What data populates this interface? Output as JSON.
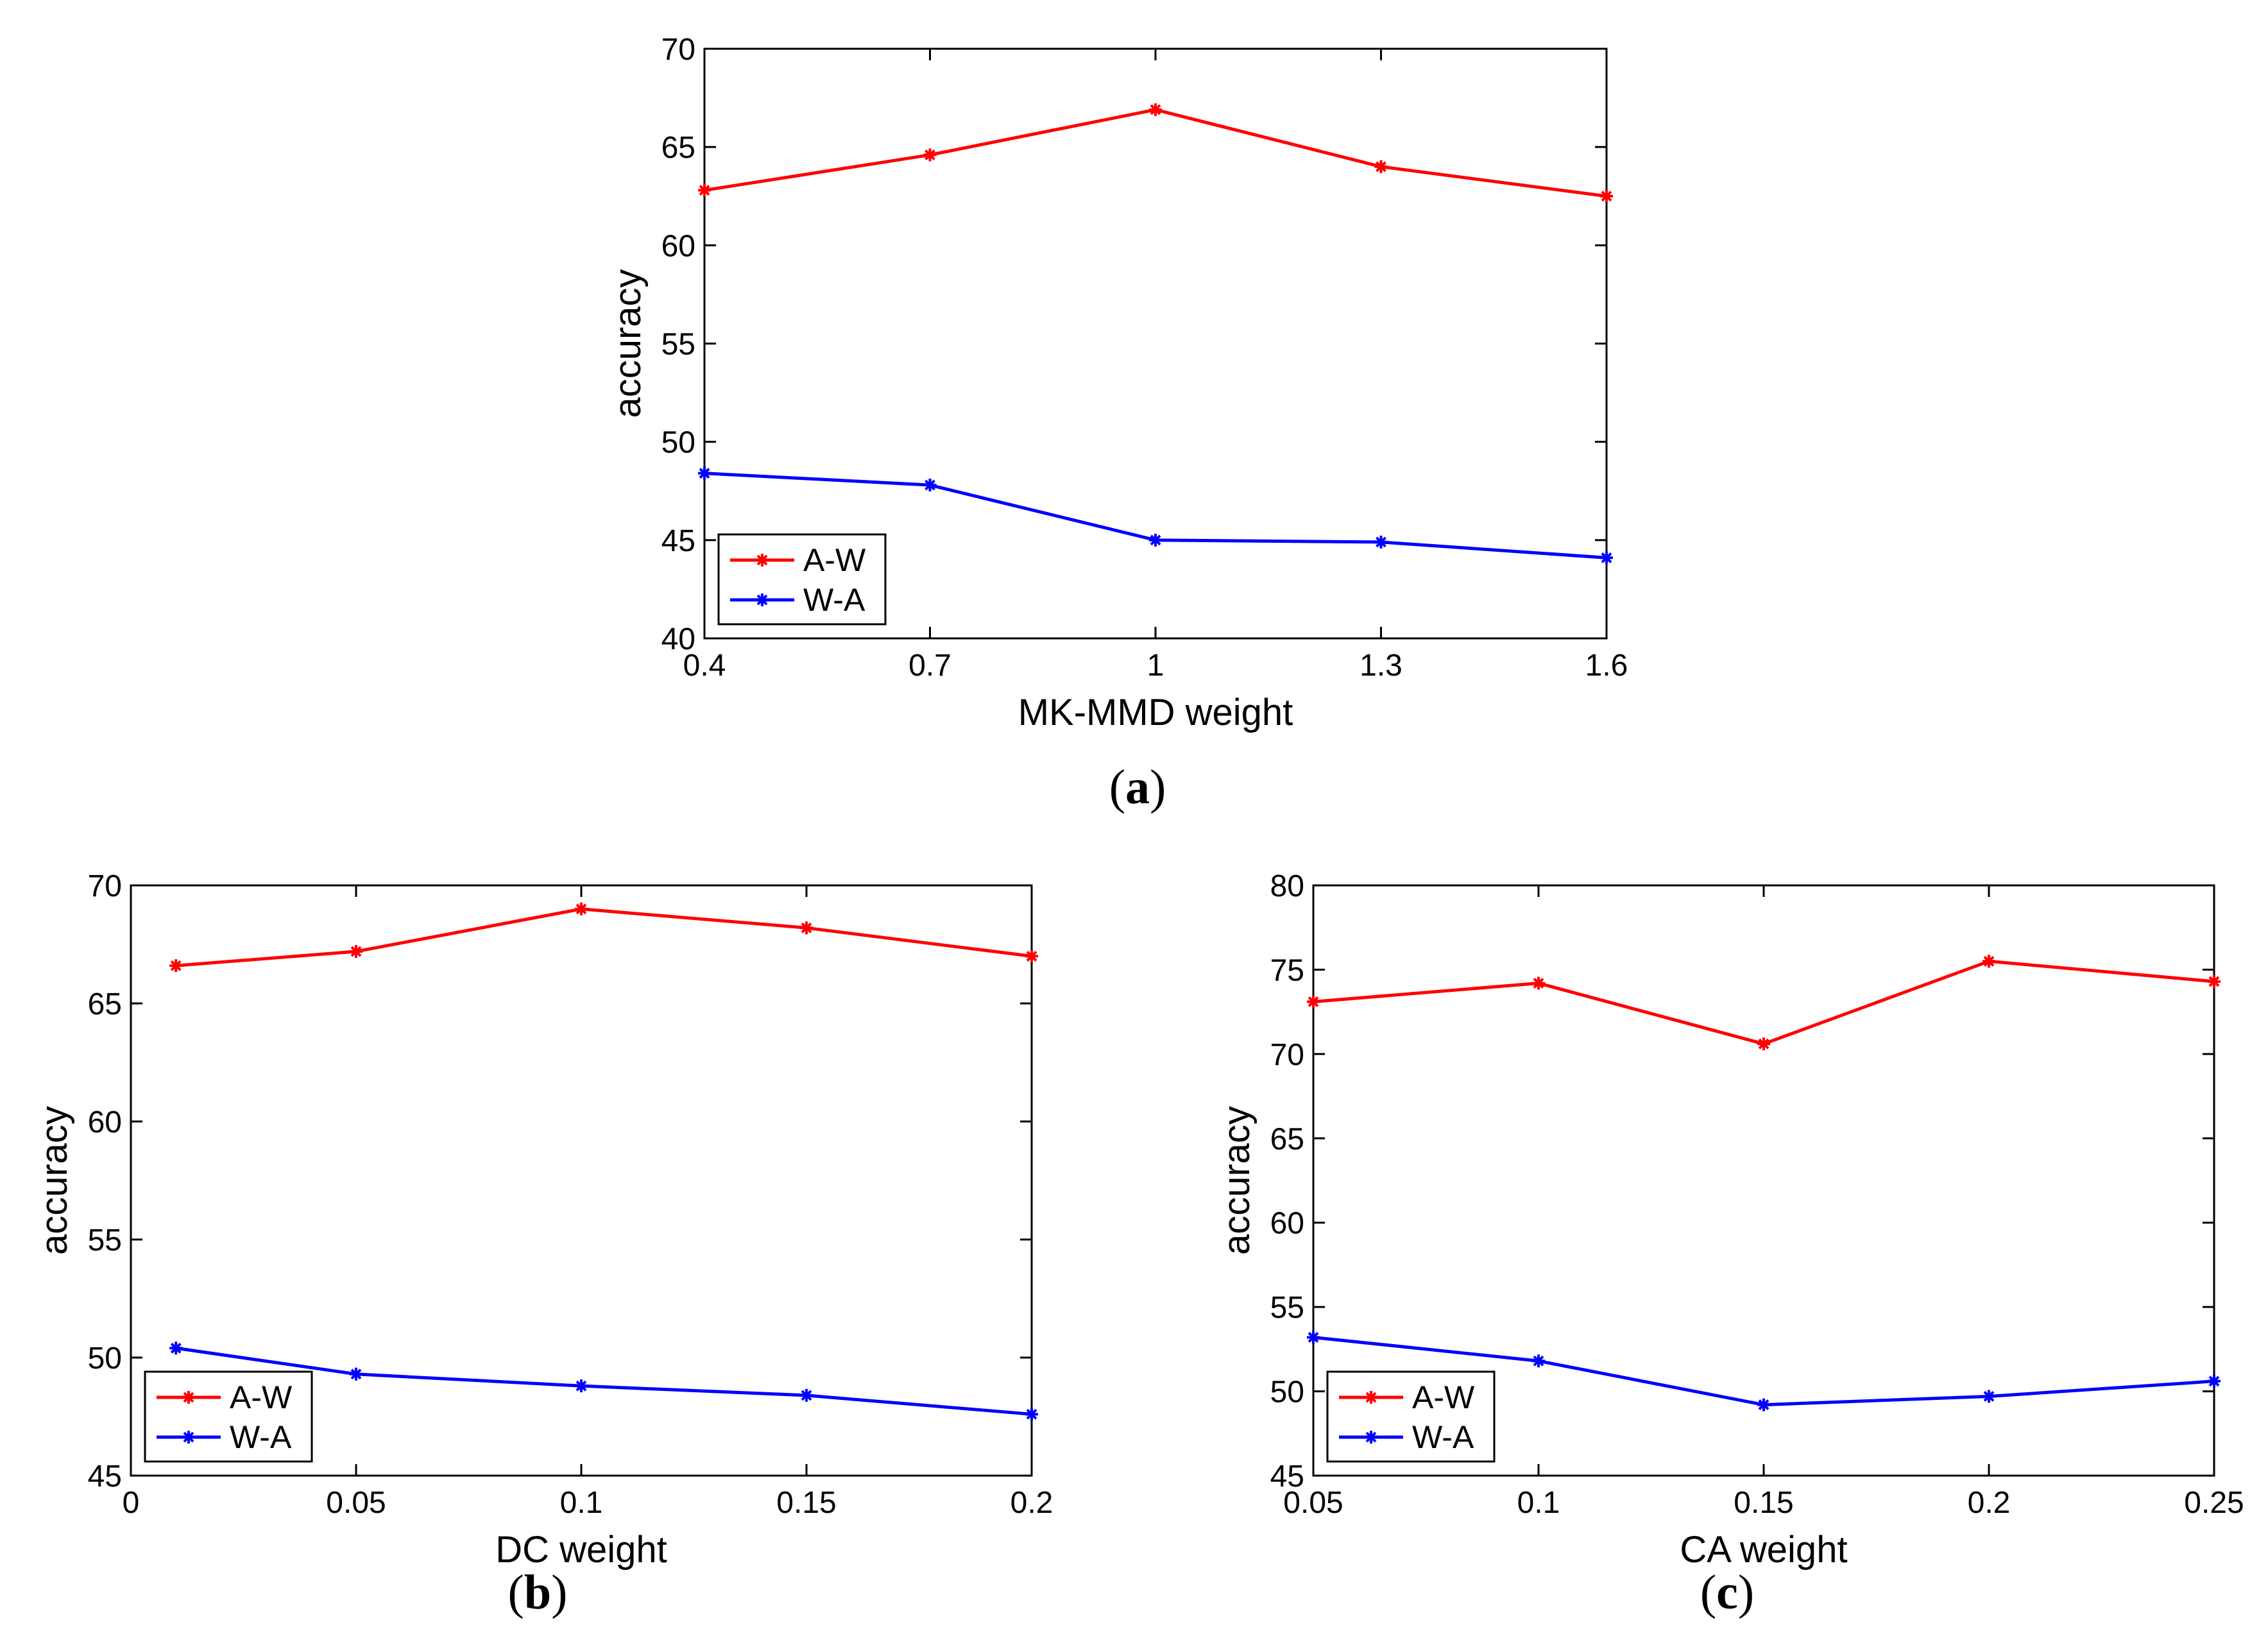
{
  "chart_data": [
    {
      "type": "line",
      "panel": "a",
      "caption_open": "(",
      "caption_letter": "a",
      "caption_close": ")",
      "xlabel": "MK-MMD weight",
      "ylabel": "accuracy",
      "xlim": [
        0.4,
        1.6
      ],
      "ylim": [
        40,
        70
      ],
      "xticks": [
        0.4,
        0.7,
        1,
        1.3,
        1.6
      ],
      "yticks": [
        40,
        45,
        50,
        55,
        60,
        65,
        70
      ],
      "grid": false,
      "legend_position": "bottom-left",
      "series": [
        {
          "name": "A-W",
          "color": "#ff0000",
          "x": [
            0.4,
            0.7,
            1,
            1.3,
            1.6
          ],
          "y": [
            62.8,
            64.6,
            66.9,
            64.0,
            62.5
          ]
        },
        {
          "name": "W-A",
          "color": "#0000ff",
          "x": [
            0.4,
            0.7,
            1,
            1.3,
            1.6
          ],
          "y": [
            48.4,
            47.8,
            45.0,
            44.9,
            44.1
          ]
        }
      ]
    },
    {
      "type": "line",
      "panel": "b",
      "caption_open": "(",
      "caption_letter": "b",
      "caption_close": ")",
      "xlabel": "DC weight",
      "ylabel": "accuracy",
      "xlim": [
        0,
        0.2
      ],
      "ylim": [
        45,
        70
      ],
      "xticks": [
        0,
        0.05,
        0.1,
        0.15,
        0.2
      ],
      "yticks": [
        45,
        50,
        55,
        60,
        65,
        70
      ],
      "grid": false,
      "legend_position": "bottom-left",
      "series": [
        {
          "name": "A-W",
          "color": "#ff0000",
          "x": [
            0.01,
            0.05,
            0.1,
            0.15,
            0.2
          ],
          "y": [
            66.6,
            67.2,
            69.0,
            68.2,
            67.0
          ]
        },
        {
          "name": "W-A",
          "color": "#0000ff",
          "x": [
            0.01,
            0.05,
            0.1,
            0.15,
            0.2
          ],
          "y": [
            50.4,
            49.3,
            48.8,
            48.4,
            47.6
          ]
        }
      ]
    },
    {
      "type": "line",
      "panel": "c",
      "caption_open": "(",
      "caption_letter": "c",
      "caption_close": ")",
      "xlabel": "CA weight",
      "ylabel": "accuracy",
      "xlim": [
        0.05,
        0.25
      ],
      "ylim": [
        45,
        80
      ],
      "xticks": [
        0.05,
        0.1,
        0.15,
        0.2,
        0.25
      ],
      "yticks": [
        45,
        50,
        55,
        60,
        65,
        70,
        75,
        80
      ],
      "grid": false,
      "legend_position": "bottom-left",
      "series": [
        {
          "name": "A-W",
          "color": "#ff0000",
          "x": [
            0.05,
            0.1,
            0.15,
            0.2,
            0.25
          ],
          "y": [
            73.1,
            74.2,
            70.6,
            75.5,
            74.3
          ]
        },
        {
          "name": "W-A",
          "color": "#0000ff",
          "x": [
            0.05,
            0.1,
            0.15,
            0.2,
            0.25
          ],
          "y": [
            53.2,
            51.8,
            49.2,
            49.7,
            50.6
          ]
        }
      ]
    }
  ]
}
